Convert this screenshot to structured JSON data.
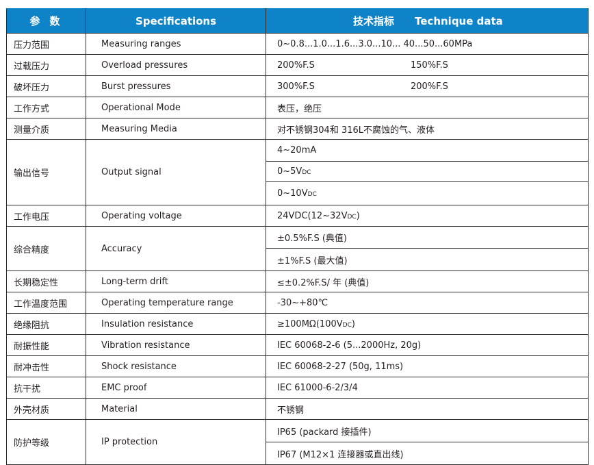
{
  "header": {
    "col1": "参数",
    "col2": "Specifications",
    "col3_cn": "技术指标",
    "col3_en": "Technique data"
  },
  "colors": {
    "header_bg": "#0e83c7",
    "border": "#2b2b2b"
  },
  "rows": [
    {
      "cn": "压力范围",
      "en": "Measuring ranges",
      "values": [
        [
          {
            "t": "0~0.8...1.0...1.6...3.0...10...  40...50...60MPa"
          }
        ]
      ]
    },
    {
      "cn": "过载压力",
      "en": "Overload pressures",
      "values": [
        [
          {
            "t": "200%F.S"
          },
          {
            "gap": true
          },
          {
            "t": "150%F.S"
          }
        ]
      ]
    },
    {
      "cn": "破坏压力",
      "en": "Burst pressures",
      "values": [
        [
          {
            "t": "300%F.S"
          },
          {
            "gap": true
          },
          {
            "t": "200%F.S"
          }
        ]
      ]
    },
    {
      "cn": "工作方式",
      "en": "Operational Mode",
      "values": [
        [
          {
            "t": "表压，绝压"
          }
        ]
      ]
    },
    {
      "cn": "测量介质",
      "en": "Measuring Media",
      "values": [
        [
          {
            "t": "对不锈钢304和 316L不腐蚀的气、液体"
          }
        ]
      ]
    },
    {
      "cn": "输出信号",
      "en": "Output signal",
      "values": [
        [
          {
            "t": "4~20mA"
          }
        ],
        [
          {
            "t": "0~5V"
          },
          {
            "sub": "DC"
          }
        ],
        [
          {
            "t": "0~10V"
          },
          {
            "sub": "DC"
          }
        ]
      ]
    },
    {
      "cn": "工作电压",
      "en": "Operating voltage",
      "values": [
        [
          {
            "t": "24VDC(12~32V"
          },
          {
            "sub": "DC"
          },
          {
            "t": ")"
          }
        ]
      ]
    },
    {
      "cn": "综合精度",
      "en": "Accuracy",
      "values": [
        [
          {
            "t": "±0.5%F.S (典值)"
          }
        ],
        [
          {
            "t": "±1%F.S (最大值)"
          }
        ]
      ]
    },
    {
      "cn": "长期稳定性",
      "en": "Long-term drift",
      "values": [
        [
          {
            "t": "≤±0.2%F.S/ 年 (典值)"
          }
        ]
      ]
    },
    {
      "cn": "工作温度范围",
      "en": "Operating temperature range",
      "values": [
        [
          {
            "t": "-30~+80℃"
          }
        ]
      ]
    },
    {
      "cn": "绝缘阻抗",
      "en": "Insulation resistance",
      "values": [
        [
          {
            "t": "≥100MΩ(100V"
          },
          {
            "sub": "DC"
          },
          {
            "t": ")"
          }
        ]
      ]
    },
    {
      "cn": "耐振性能",
      "en": "Vibration resistance",
      "values": [
        [
          {
            "t": "IEC 60068-2-6 (5...2000Hz, 20g)"
          }
        ]
      ]
    },
    {
      "cn": "耐冲击性",
      "en": "Shock resistance",
      "values": [
        [
          {
            "t": "IEC 60068-2-27 (50g, 11ms)"
          }
        ]
      ]
    },
    {
      "cn": "抗干扰",
      "en": "EMC proof",
      "values": [
        [
          {
            "t": "IEC 61000-6-2/3/4"
          }
        ]
      ]
    },
    {
      "cn": "外壳材质",
      "en": "Material",
      "values": [
        [
          {
            "t": "不锈钢"
          }
        ]
      ]
    },
    {
      "cn": "防护等级",
      "en": "IP protection",
      "values": [
        [
          {
            "t": "IP65 (packard 接插件)"
          }
        ],
        [
          {
            "t": "IP67 (M12×1 连接器或直出线)"
          }
        ]
      ]
    }
  ]
}
